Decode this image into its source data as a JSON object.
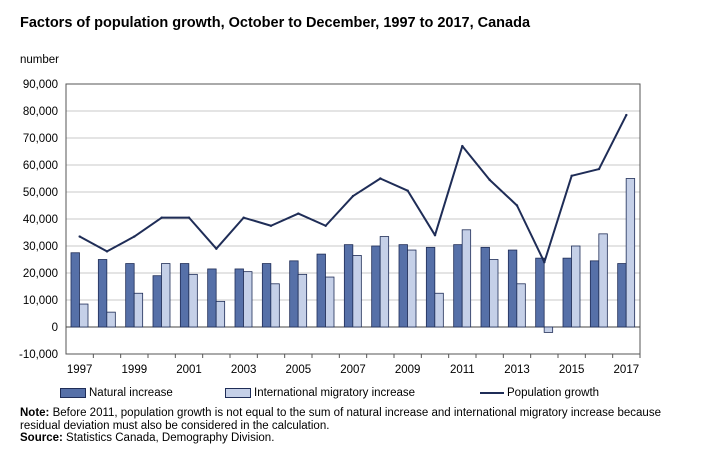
{
  "chart_data": {
    "type": "bar",
    "title": "Factors of population growth, October to December, 1997 to 2017, Canada",
    "ylabel": "number",
    "xlabel": "",
    "ylim": [
      -10000,
      90000
    ],
    "yticks": [
      -10000,
      0,
      10000,
      20000,
      30000,
      40000,
      50000,
      60000,
      70000,
      80000,
      90000
    ],
    "ytick_labels": [
      "-10,000",
      "0",
      "10,000",
      "20,000",
      "30,000",
      "40,000",
      "50,000",
      "60,000",
      "70,000",
      "80,000",
      "90,000"
    ],
    "categories": [
      "1997",
      "1998",
      "1999",
      "2000",
      "2001",
      "2002",
      "2003",
      "2004",
      "2005",
      "2006",
      "2007",
      "2008",
      "2009",
      "2010",
      "2011",
      "2012",
      "2013",
      "2014",
      "2015",
      "2016",
      "2017"
    ],
    "xtick_labels": [
      "1997",
      "",
      "1999",
      "",
      "2001",
      "",
      "2003",
      "",
      "2005",
      "",
      "2007",
      "",
      "2009",
      "",
      "2011",
      "",
      "2013",
      "",
      "2015",
      "",
      "2017"
    ],
    "grid": true,
    "series": [
      {
        "name": "Natural increase",
        "kind": "bar",
        "color": "#5670a8",
        "values": [
          27500,
          25000,
          23500,
          19000,
          23500,
          21500,
          21500,
          23500,
          24500,
          27000,
          30500,
          30000,
          30500,
          29500,
          30500,
          29500,
          28500,
          25500,
          25500,
          24500,
          23500
        ]
      },
      {
        "name": "International migratory increase",
        "kind": "bar",
        "color": "#c5d0e8",
        "values": [
          8500,
          5500,
          12500,
          23500,
          19500,
          9500,
          20500,
          16000,
          19500,
          18500,
          26500,
          33500,
          28500,
          12500,
          36000,
          25000,
          16000,
          -2000,
          30000,
          34500,
          55000
        ]
      },
      {
        "name": "Population growth",
        "kind": "line",
        "color": "#1f2d57",
        "values": [
          33500,
          28000,
          33500,
          40500,
          40500,
          29000,
          40500,
          37500,
          42000,
          37500,
          48500,
          55000,
          50500,
          34000,
          67000,
          54500,
          45000,
          24000,
          56000,
          58500,
          78500
        ]
      }
    ]
  },
  "note_label": "Note:",
  "note_text": "Before 2011, population growth is not equal to the sum of natural increase and international migratory increase because residual deviation must also be considered in the calculation.",
  "source_label": "Source:",
  "source_text": "Statistics Canada, Demography Division."
}
